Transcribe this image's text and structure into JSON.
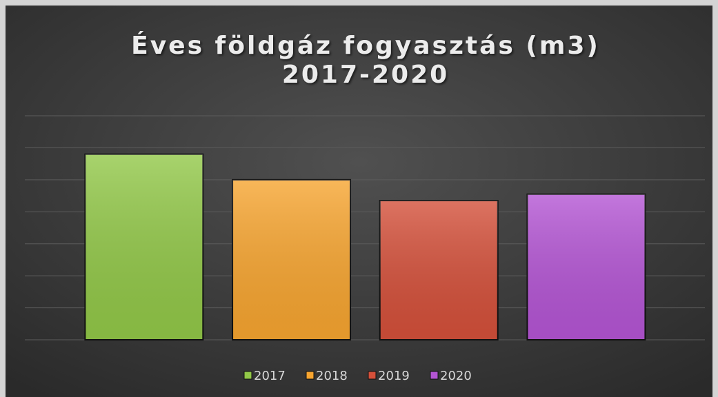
{
  "chart_data": {
    "type": "bar",
    "title": [
      "Éves földgáz fogyasztás (m3)",
      "2017-2020"
    ],
    "categories": [
      "2017",
      "2018",
      "2019",
      "2020"
    ],
    "values": [
      5.8,
      5.0,
      4.35,
      4.55
    ],
    "colors": [
      "#92c848",
      "#f7a530",
      "#d4503a",
      "#b455d4"
    ],
    "ylim": [
      0,
      7
    ],
    "yticks": [
      0,
      1,
      2,
      3,
      4,
      5,
      6,
      7
    ],
    "grid": true,
    "legend": "bottom"
  }
}
